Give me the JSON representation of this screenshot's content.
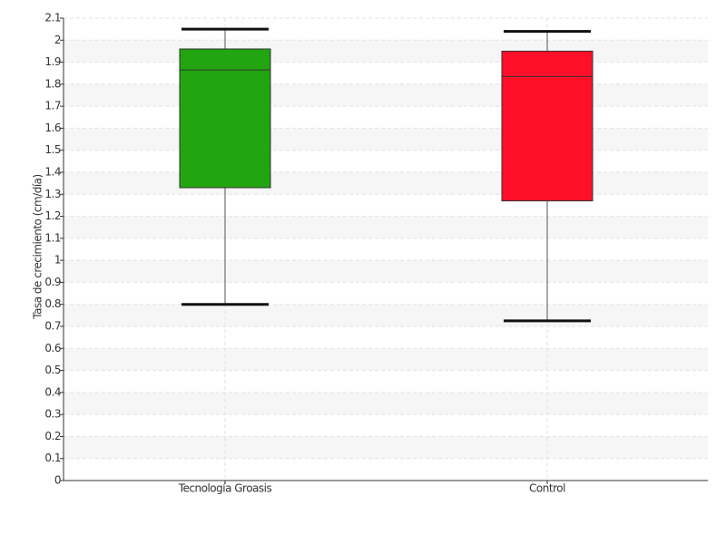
{
  "chart_data": {
    "type": "box",
    "y_label": "Tasa de crecimiento (cm/día)",
    "categories": [
      "Tecnología Groasis",
      "Control"
    ],
    "boxes": [
      {
        "min": 0.8,
        "q1": 1.33,
        "median": 1.865,
        "q3": 1.96,
        "max": 2.05,
        "color": "#22a511"
      },
      {
        "min": 0.725,
        "q1": 1.27,
        "median": 1.835,
        "q3": 1.95,
        "max": 2.04,
        "color": "#ff0f29"
      }
    ],
    "ylim": [
      0,
      2.1
    ],
    "yticks": [
      0,
      0.1,
      0.2,
      0.3,
      0.4,
      0.5,
      0.6,
      0.7,
      0.8,
      0.9,
      1,
      1.1,
      1.2,
      1.3,
      1.4,
      1.5,
      1.6,
      1.7,
      1.8,
      1.9,
      2,
      2.1
    ],
    "grid": true
  }
}
